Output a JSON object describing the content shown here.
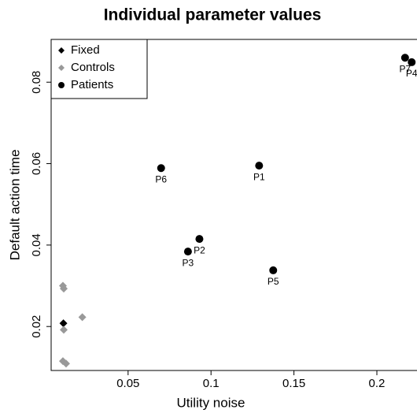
{
  "chart_data": {
    "type": "scatter",
    "title": "Individual parameter values",
    "x_label": "Utility noise",
    "y_label": "Default action time",
    "xlim": [
      0.0036,
      0.2242
    ],
    "ylim": [
      0.0092,
      0.0905
    ],
    "xticks": [
      0.05,
      0.1,
      0.15,
      0.2
    ],
    "yticks": [
      0.02,
      0.04,
      0.06,
      0.08
    ],
    "legend": "top-left",
    "series": [
      {
        "name": "Fixed",
        "color": "#000000",
        "marker": "diamond",
        "x": [
          0.011
        ],
        "values": [
          0.0208
        ]
      },
      {
        "name": "Controls",
        "color": "#999999",
        "marker": "diamond",
        "x": [
          0.0107,
          0.0112,
          0.0112,
          0.0107,
          0.0126,
          0.0224
        ],
        "values": [
          0.03,
          0.0293,
          0.0192,
          0.0115,
          0.0109,
          0.0223
        ]
      },
      {
        "name": "Patients",
        "color": "#000000",
        "marker": "circle",
        "x": [
          0.217,
          0.221,
          0.129,
          0.0699,
          0.093,
          0.0861,
          0.1375
        ],
        "values": [
          0.086,
          0.0849,
          0.0595,
          0.0589,
          0.0415,
          0.0384,
          0.0338
        ],
        "labels": [
          "P7",
          "P4",
          "P1",
          "P6",
          "P2",
          "P3",
          "P5"
        ]
      }
    ]
  }
}
